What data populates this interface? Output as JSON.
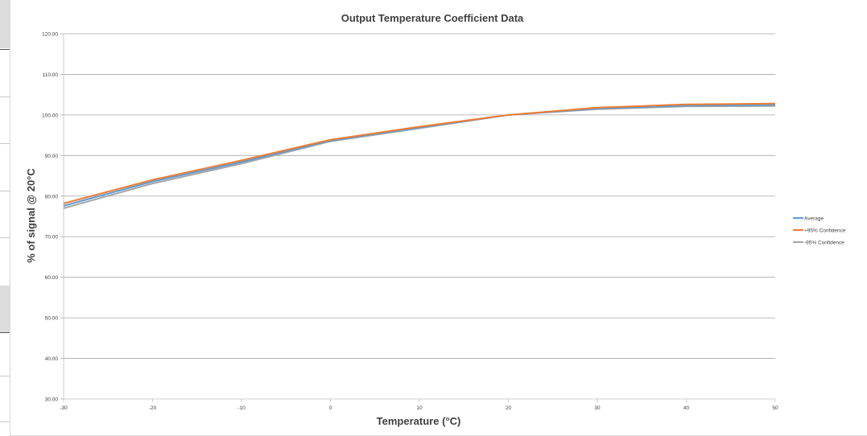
{
  "chart_data": {
    "type": "line",
    "title": "Output Temperature Coefficient Data",
    "xlabel": "Temperature  (°C)",
    "ylabel": "% of signal @ 20°C",
    "x": [
      -30,
      -20,
      -10,
      0,
      10,
      20,
      30,
      40,
      50
    ],
    "x_tick_labels": [
      "-30",
      "-20",
      "-10",
      "0",
      "10",
      "20",
      "30",
      "40",
      "50"
    ],
    "xlim": [
      -30,
      50
    ],
    "ylim": [
      30,
      120
    ],
    "y_tick_labels": [
      "30.00",
      "40.00",
      "50.00",
      "60.00",
      "70.00",
      "80.00",
      "90.00",
      "100.00",
      "110.00",
      "120.00"
    ],
    "y_ticks": [
      30,
      40,
      50,
      60,
      70,
      80,
      90,
      100,
      110,
      120
    ],
    "grid": "horizontal",
    "legend_position": "right",
    "series": [
      {
        "name": "Average",
        "color": "#5b9bd5",
        "values": [
          77.6,
          83.6,
          88.4,
          93.7,
          96.9,
          100.0,
          101.6,
          102.3,
          102.5
        ]
      },
      {
        "name": "+95% Confidence",
        "color": "#ed7d31",
        "values": [
          78.2,
          84.0,
          88.8,
          93.9,
          97.1,
          100.0,
          101.8,
          102.6,
          102.8
        ]
      },
      {
        "name": "-95% Confidence",
        "color": "#a5a5a5",
        "values": [
          77.0,
          83.1,
          88.0,
          93.5,
          96.7,
          100.0,
          101.4,
          102.1,
          102.2
        ]
      }
    ]
  }
}
